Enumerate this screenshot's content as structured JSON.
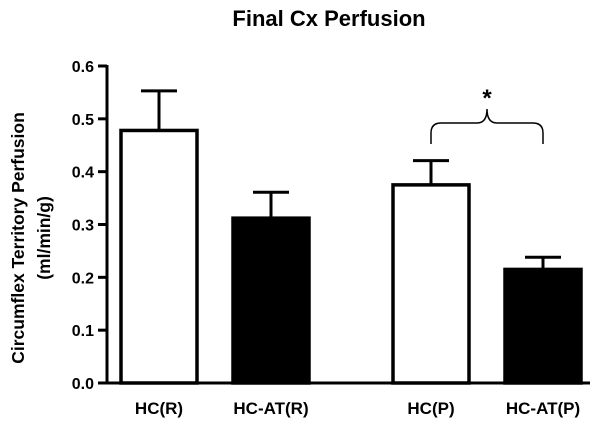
{
  "chart_data": {
    "type": "bar",
    "title": "Final Cx Perfusion",
    "ylabel_line1": "Circumflex Territory Perfusion",
    "ylabel_line2": "(ml/min/g)",
    "xlabel": "",
    "ylim": [
      0,
      0.6
    ],
    "yticks": [
      "0.0",
      "0.1",
      "0.2",
      "0.3",
      "0.4",
      "0.5",
      "0.6"
    ],
    "categories": [
      "HC(R)",
      "HC-AT(R)",
      "HC(P)",
      "HC-AT(P)"
    ],
    "values": [
      0.478,
      0.312,
      0.375,
      0.215
    ],
    "errors": [
      0.075,
      0.049,
      0.046,
      0.023
    ],
    "bar_colors": [
      "#ffffff",
      "#000000",
      "#ffffff",
      "#000000"
    ],
    "annotation": {
      "text": "*",
      "between": [
        "HC(P)",
        "HC-AT(P)"
      ]
    },
    "grid": false,
    "legend": "none"
  }
}
